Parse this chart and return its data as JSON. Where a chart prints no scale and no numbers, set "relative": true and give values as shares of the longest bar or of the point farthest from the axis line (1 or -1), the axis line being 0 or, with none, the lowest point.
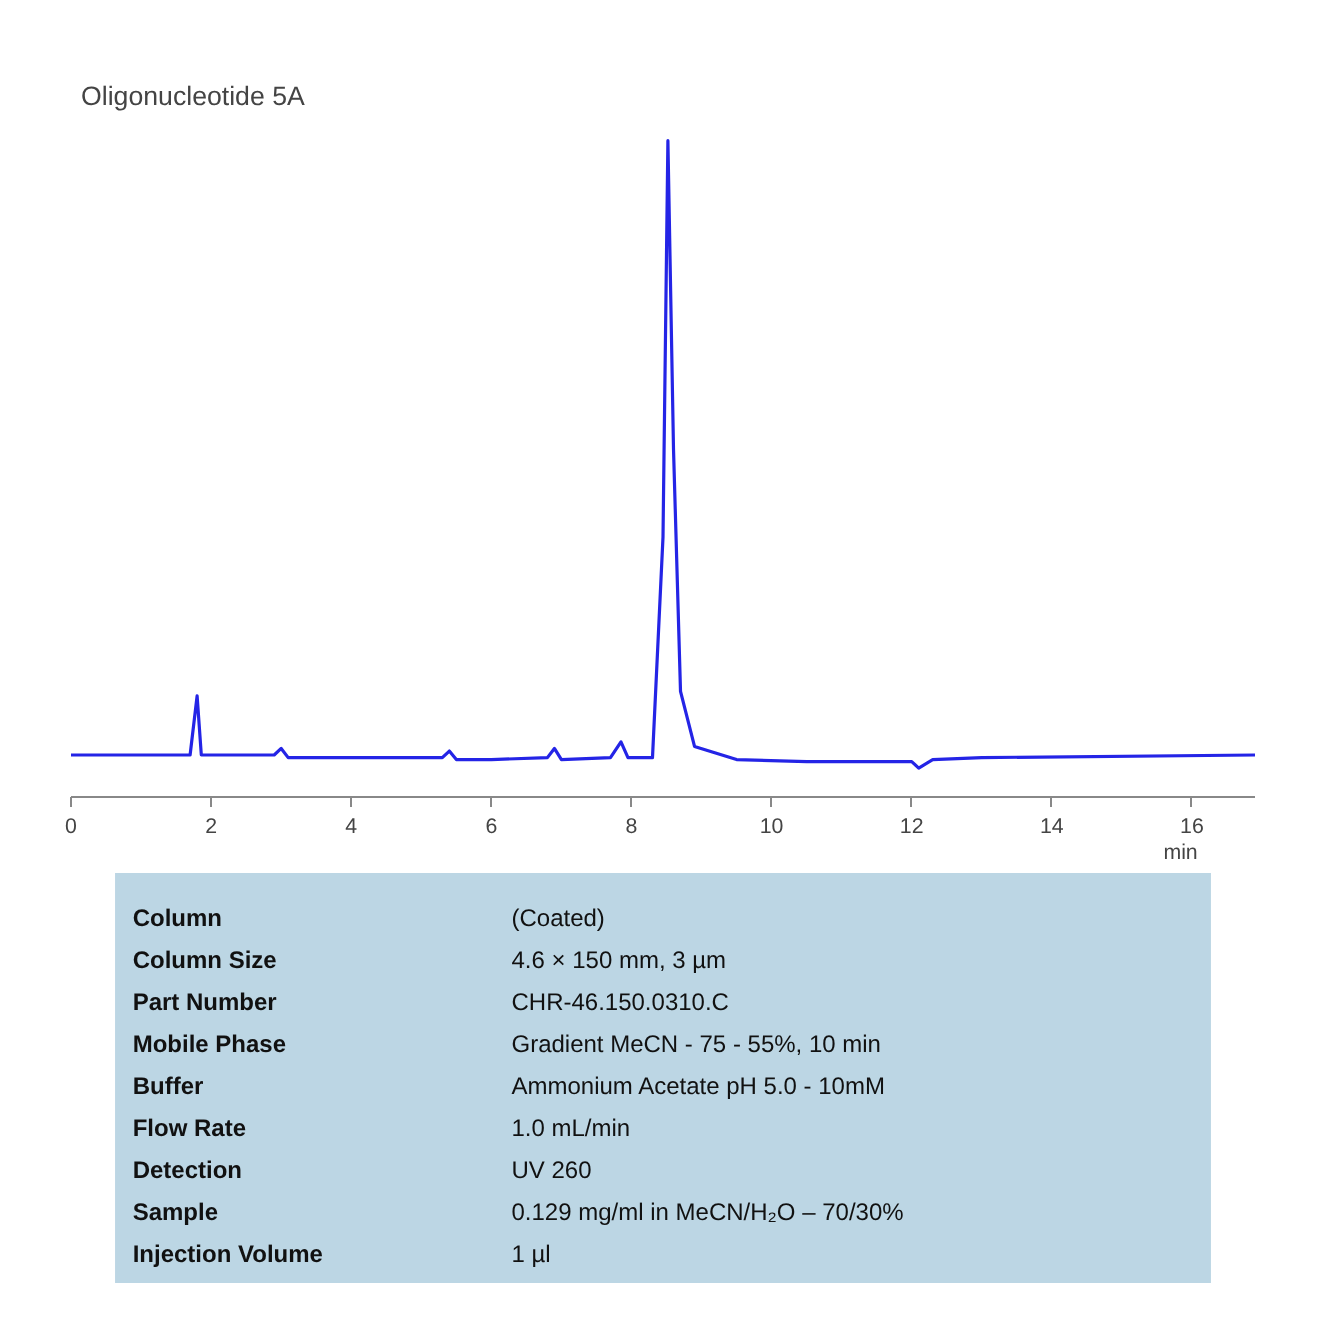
{
  "chart_data": {
    "type": "line",
    "title": "Oligonucleotide 5A",
    "xlabel": "min",
    "relative": true,
    "grid": false,
    "marker": "none",
    "line_style": "solid",
    "xlim": [
      0,
      16.9
    ],
    "xticks": [
      0,
      2,
      4,
      6,
      8,
      10,
      12,
      14,
      16
    ],
    "x": [
      0,
      1.7,
      1.8,
      1.86,
      2.9,
      3.0,
      3.1,
      5.3,
      5.4,
      5.5,
      6.0,
      6.8,
      6.9,
      7.0,
      7.7,
      7.85,
      7.95,
      8.3,
      8.45,
      8.52,
      8.6,
      8.7,
      8.9,
      9.5,
      10.5,
      12.0,
      12.1,
      12.3,
      13.0,
      16.9
    ],
    "series": [
      {
        "color": "#2424e6",
        "values": [
          0.064,
          0.064,
          0.154,
          0.064,
          0.064,
          0.074,
          0.06,
          0.06,
          0.07,
          0.057,
          0.057,
          0.06,
          0.074,
          0.057,
          0.06,
          0.084,
          0.06,
          0.06,
          0.396,
          1,
          0.53,
          0.161,
          0.077,
          0.057,
          0.054,
          0.054,
          0.044,
          0.057,
          0.06,
          0.064
        ]
      }
    ],
    "annotations": [
      "Column",
      "(Coated)",
      "Column Size",
      "4.6 × 150 mm, 3 µm",
      "Part Number",
      "CHR-46.150.0310.C",
      "Mobile Phase",
      "Gradient MeCN - 75 - 55%, 10 min",
      "Buffer",
      "Ammonium Acetate pH 5.0  - 10mM",
      "Flow Rate",
      "1.0 mL/min",
      "Detection",
      "UV 260",
      "Sample",
      "0.129 mg/ml in MeCN/H₂O – 70/30%",
      "Injection Volume",
      "1 µl"
    ]
  }
}
